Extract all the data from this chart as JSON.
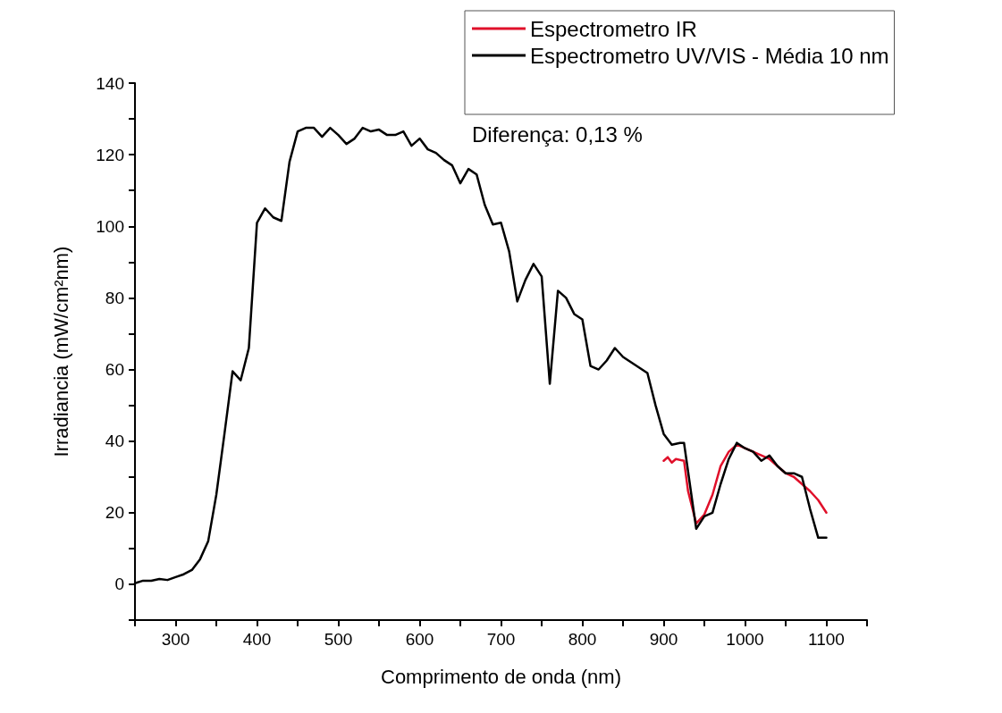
{
  "chart_data": {
    "type": "line",
    "xlabel": "Comprimento de onda (nm)",
    "ylabel": "Irradiancia (mW/cm²nm)",
    "xlim": [
      250,
      1150
    ],
    "ylim": [
      -10,
      140
    ],
    "xticks": [
      {
        "value": 250,
        "label": null
      },
      300,
      {
        "value": 350,
        "label": null
      },
      400,
      {
        "value": 450,
        "label": null
      },
      500,
      {
        "value": 550,
        "label": null
      },
      600,
      {
        "value": 650,
        "label": null
      },
      700,
      {
        "value": 750,
        "label": null
      },
      800,
      {
        "value": 850,
        "label": null
      },
      900,
      {
        "value": 950,
        "label": null
      },
      1000,
      {
        "value": 1050,
        "label": null
      },
      1100,
      {
        "value": 1150,
        "label": null
      }
    ],
    "yticks": [
      {
        "value": -10,
        "label": null
      },
      0,
      {
        "value": 10,
        "label": null
      },
      20,
      {
        "value": 30,
        "label": null
      },
      40,
      {
        "value": 50,
        "label": null
      },
      60,
      {
        "value": 70,
        "label": null
      },
      80,
      {
        "value": 90,
        "label": null
      },
      100,
      {
        "value": 110,
        "label": null
      },
      120,
      {
        "value": 130,
        "label": null
      },
      140
    ],
    "grid": false,
    "legend": "top right",
    "marker": "none",
    "line_style": "solid",
    "annotations": [
      "Diferença: 0,13 %"
    ],
    "series": [
      {
        "name": "Espectrometro IR",
        "color": "#e0102a",
        "x": [
          900,
          905,
          910,
          915,
          925,
          930,
          940,
          950,
          960,
          970,
          980,
          990,
          1000,
          1010,
          1020,
          1030,
          1040,
          1050,
          1060,
          1070,
          1080,
          1090,
          1100
        ],
        "values": [
          34.5,
          35.5,
          34,
          35,
          34.5,
          26,
          17,
          19.5,
          25,
          33,
          37,
          39,
          38,
          37,
          36,
          35,
          33,
          31,
          30,
          28,
          26,
          23.5,
          20
        ]
      },
      {
        "name": "Espectrometro UV/VIS - Média 10 nm",
        "color": "#000000",
        "x": [
          250,
          260,
          270,
          280,
          290,
          300,
          310,
          320,
          330,
          340,
          350,
          360,
          370,
          380,
          390,
          400,
          410,
          420,
          430,
          440,
          450,
          460,
          470,
          480,
          490,
          500,
          510,
          520,
          530,
          540,
          550,
          560,
          570,
          580,
          590,
          600,
          610,
          620,
          630,
          640,
          650,
          660,
          670,
          680,
          690,
          700,
          710,
          720,
          730,
          740,
          750,
          760,
          770,
          780,
          790,
          800,
          810,
          820,
          830,
          840,
          850,
          860,
          870,
          880,
          890,
          900,
          910,
          920,
          925,
          940,
          950,
          960,
          970,
          980,
          990,
          1000,
          1010,
          1020,
          1030,
          1040,
          1050,
          1060,
          1070,
          1080,
          1090,
          1100
        ],
        "values": [
          0.3,
          1,
          1,
          1.5,
          1.2,
          2,
          2.8,
          4,
          7,
          12,
          25,
          42,
          59.5,
          57,
          66,
          101,
          105,
          102.5,
          101.5,
          118,
          126.5,
          127.5,
          127.5,
          125,
          127.5,
          125.5,
          123,
          124.5,
          127.5,
          126.5,
          127,
          125.5,
          125.5,
          126.5,
          122.5,
          124.5,
          121.5,
          120.5,
          118.5,
          117,
          112,
          116,
          114.5,
          106,
          100.5,
          101,
          93,
          79,
          85,
          89.5,
          86,
          56,
          82,
          80,
          75.5,
          74,
          61,
          60,
          62.5,
          66,
          63.5,
          62,
          60.5,
          59,
          50,
          42,
          39,
          39.5,
          39.5,
          15.5,
          19,
          20,
          28,
          35,
          39.5,
          38,
          37,
          34.5,
          36,
          33,
          31,
          31,
          30,
          21,
          13,
          13
        ]
      }
    ]
  }
}
